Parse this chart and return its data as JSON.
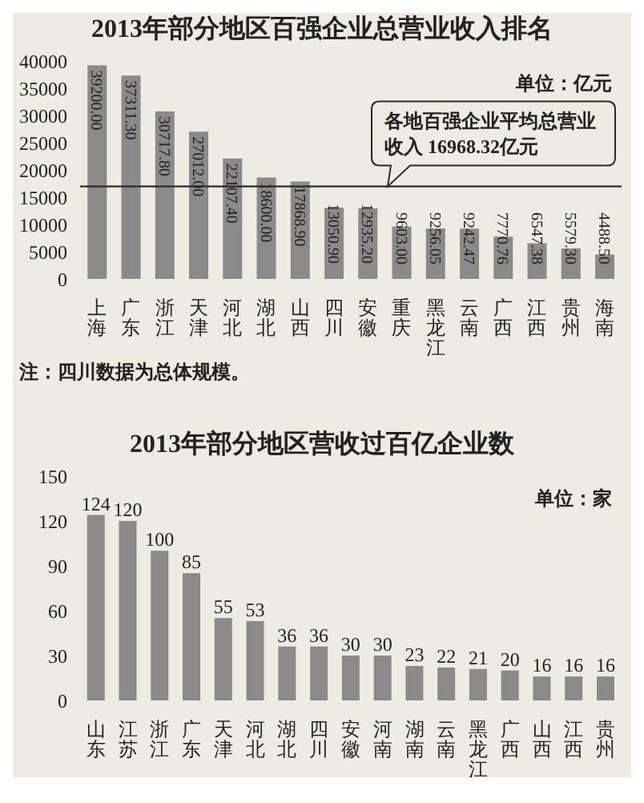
{
  "chart_data": [
    {
      "type": "bar",
      "title": "2013年部分地区百强企业总营业收入排名",
      "categories": [
        "上海",
        "广东",
        "浙江",
        "天津",
        "河北",
        "湖北",
        "山西",
        "四川",
        "安徽",
        "重庆",
        "黑龙江",
        "云南",
        "广西",
        "江西",
        "贵州",
        "海南"
      ],
      "values": [
        39200.0,
        37311.3,
        30717.8,
        27012.0,
        22107.4,
        18600.0,
        17868.9,
        13050.9,
        12935.2,
        9603.0,
        9256.05,
        9242.47,
        7770.76,
        6547.38,
        5579.3,
        4488.5
      ],
      "value_labels": [
        "39200.00",
        "37311.30",
        "30717.80",
        "27012.00",
        "22107.40",
        "18600.00",
        "17868.90",
        "13050.90",
        "12935.20",
        "9603.00",
        "9256.05",
        "9242.47",
        "7770.76",
        "6547.38",
        "5579.30",
        "4488.50"
      ],
      "color": "#8a8a8a",
      "ylim": [
        0,
        40000
      ],
      "yticks": [
        0,
        5000,
        10000,
        15000,
        20000,
        25000,
        30000,
        35000,
        40000
      ],
      "ref_lines": [
        {
          "axis": "y",
          "value": 16968.32,
          "label": "各地百强企业平均总营业收入 16968.32亿元",
          "color": "#2a2a2a"
        }
      ],
      "annotations": [
        "单位：亿元",
        "注：四川数据为总体规模。"
      ]
    },
    {
      "type": "bar",
      "title": "2013年部分地区营收过百亿企业数",
      "categories": [
        "山东",
        "江苏",
        "浙江",
        "广东",
        "天津",
        "河北",
        "湖北",
        "四川",
        "安徽",
        "河南",
        "湖南",
        "云南",
        "黑龙江",
        "广西",
        "山西",
        "江西",
        "贵州"
      ],
      "values": [
        124,
        120,
        100,
        85,
        55,
        53,
        36,
        36,
        30,
        30,
        23,
        22,
        21,
        20,
        16,
        16,
        16
      ],
      "data_labels": true,
      "color": "#8a8a8a",
      "ylim": [
        0,
        150
      ],
      "yticks": [
        0,
        30,
        60,
        90,
        120,
        150
      ],
      "annotations": [
        "单位：家"
      ]
    }
  ]
}
